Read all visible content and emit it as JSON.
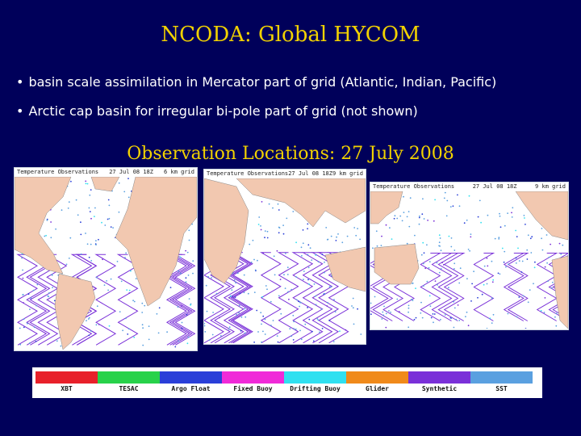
{
  "slide": {
    "title": "NCODA:  Global HYCOM",
    "bullets": [
      "basin scale assimilation in Mercator part of grid (Atlantic, Indian, Pacific)",
      "Arctic cap basin for irregular bi-pole part of grid (not shown)"
    ],
    "subtitle": "Observation Locations:  27 July 2008"
  },
  "maps": [
    {
      "obs_label": "Temperature Observations",
      "date": "27 Jul 08 18Z",
      "grid": "6 km grid",
      "land": "#f2c8b0",
      "ocean": "#ffffff"
    },
    {
      "obs_label": "Temperature Observations",
      "date": "27 Jul 08 18Z",
      "grid": "9 km grid",
      "land": "#f2c8b0",
      "ocean": "#ffffff"
    },
    {
      "obs_label": "Temperature Observations",
      "date": "27 Jul 08 18Z",
      "grid": "9 km grid",
      "land": "#f2c8b0",
      "ocean": "#ffffff"
    }
  ],
  "legend": {
    "items": [
      {
        "label": "XBT",
        "color": "#e8202a"
      },
      {
        "label": "TESAC",
        "color": "#28d24a"
      },
      {
        "label": "Argo Float",
        "color": "#2a3fd8"
      },
      {
        "label": "Fixed Buoy",
        "color": "#f02ad8"
      },
      {
        "label": "Drifting Buoy",
        "color": "#30e0f0"
      },
      {
        "label": "Glider",
        "color": "#f08a1a"
      },
      {
        "label": "Synthetic",
        "color": "#7a30d8"
      },
      {
        "label": "SST",
        "color": "#5aa0e0"
      }
    ]
  }
}
